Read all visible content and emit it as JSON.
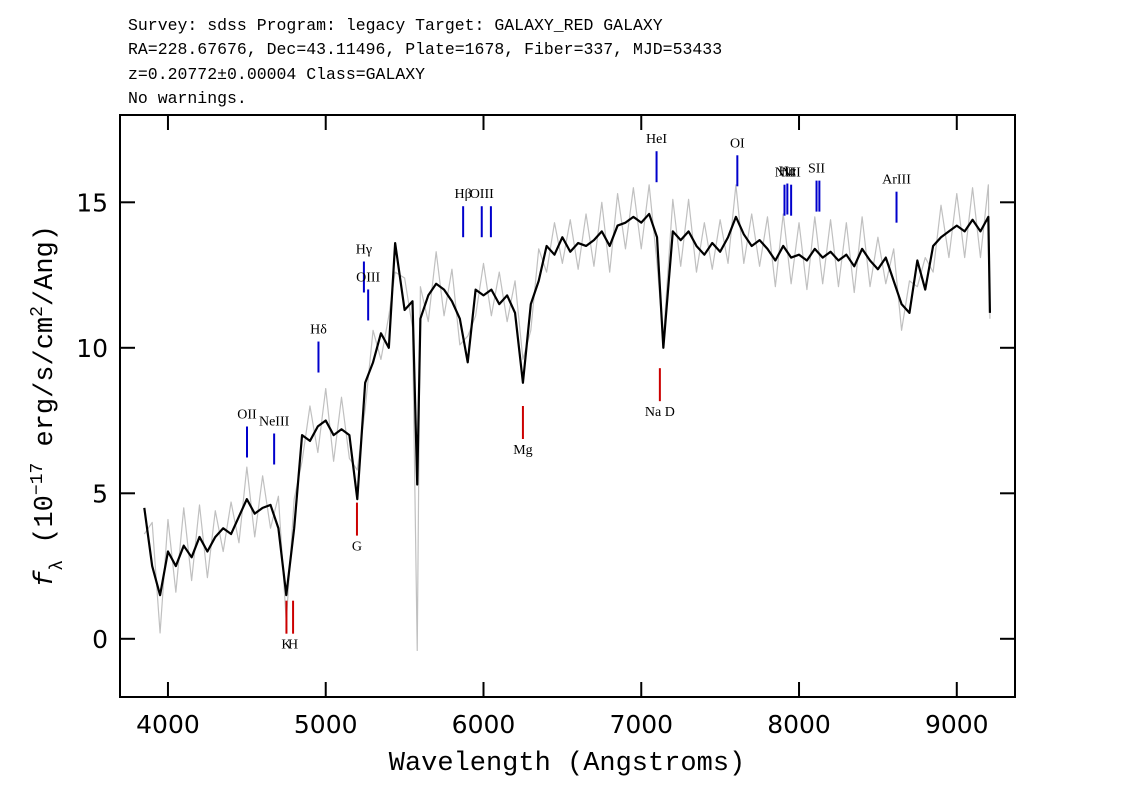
{
  "header": {
    "lines": [
      "Survey: sdss Program: legacy Target: GALAXY_RED GALAXY",
      "RA=228.67676, Dec=43.11496, Plate=1678, Fiber=337, MJD=53433",
      "z=0.20772±0.00004 Class=GALAXY",
      "No warnings."
    ]
  },
  "chart_data": {
    "type": "line",
    "xlabel": "Wavelength (Angstroms)",
    "ylabel": [
      "f",
      "λ",
      " (10",
      "−17",
      " erg/s/cm",
      "2",
      "/Ang)"
    ],
    "xlim": [
      3696,
      9369
    ],
    "ylim": [
      -2,
      18
    ],
    "xticks": [
      4000,
      5000,
      6000,
      7000,
      8000,
      9000
    ],
    "yticks": [
      0,
      5,
      10,
      15
    ],
    "x": [
      3850,
      3900,
      3950,
      4000,
      4050,
      4100,
      4150,
      4200,
      4250,
      4300,
      4350,
      4400,
      4450,
      4500,
      4550,
      4600,
      4650,
      4700,
      4750,
      4800,
      4850,
      4900,
      4950,
      5000,
      5050,
      5100,
      5150,
      5200,
      5250,
      5300,
      5350,
      5400,
      5440,
      5500,
      5550,
      5580,
      5600,
      5650,
      5700,
      5750,
      5800,
      5850,
      5900,
      5950,
      6000,
      6050,
      6100,
      6150,
      6200,
      6250,
      6300,
      6350,
      6400,
      6450,
      6500,
      6550,
      6600,
      6650,
      6700,
      6750,
      6800,
      6850,
      6900,
      6950,
      7000,
      7050,
      7100,
      7140,
      7200,
      7250,
      7300,
      7350,
      7400,
      7450,
      7500,
      7550,
      7600,
      7650,
      7700,
      7750,
      7800,
      7850,
      7900,
      7950,
      8000,
      8050,
      8100,
      8150,
      8200,
      8250,
      8300,
      8350,
      8400,
      8450,
      8500,
      8550,
      8600,
      8650,
      8700,
      8750,
      8800,
      8850,
      8900,
      8950,
      9000,
      9050,
      9100,
      9150,
      9200,
      9210
    ],
    "series": [
      {
        "color": "#c0c0c0",
        "width": 1.2,
        "values": [
          3.6,
          4.0,
          0.2,
          4.1,
          1.6,
          4.5,
          2.0,
          4.6,
          2.1,
          4.4,
          3.0,
          4.7,
          3.3,
          5.9,
          3.5,
          5.6,
          3.8,
          4.9,
          0.6,
          4.8,
          6.1,
          8.0,
          6.4,
          8.6,
          6.1,
          8.3,
          6.2,
          5.8,
          7.9,
          10.6,
          9.6,
          11.1,
          12.6,
          12.4,
          10.7,
          -0.4,
          12.1,
          10.9,
          13.3,
          11.1,
          12.7,
          10.1,
          10.4,
          11.1,
          12.9,
          11.1,
          12.6,
          10.9,
          12.3,
          9.6,
          10.6,
          13.4,
          12.6,
          14.3,
          12.9,
          14.4,
          12.7,
          14.6,
          12.8,
          15.0,
          12.6,
          15.3,
          13.4,
          15.5,
          13.4,
          15.6,
          12.9,
          10.3,
          15.1,
          12.8,
          15.1,
          12.6,
          14.3,
          12.7,
          14.4,
          12.9,
          15.6,
          12.9,
          14.6,
          12.8,
          14.5,
          12.1,
          14.6,
          12.2,
          14.3,
          12.0,
          14.5,
          12.2,
          14.4,
          12.1,
          14.3,
          11.9,
          14.5,
          12.1,
          13.8,
          12.2,
          13.4,
          10.6,
          12.3,
          12.1,
          13.1,
          12.6,
          14.9,
          13.1,
          15.3,
          13.1,
          15.5,
          13.1,
          15.6,
          11.0
        ]
      },
      {
        "color": "#000000",
        "width": 2.2,
        "values": [
          4.5,
          2.5,
          1.5,
          3.0,
          2.5,
          3.2,
          2.8,
          3.5,
          3.0,
          3.5,
          3.8,
          3.6,
          4.2,
          4.8,
          4.3,
          4.5,
          4.6,
          3.8,
          1.5,
          3.8,
          7.0,
          6.8,
          7.3,
          7.5,
          7.0,
          7.2,
          7.0,
          4.8,
          8.8,
          9.5,
          10.5,
          10.0,
          13.6,
          11.3,
          11.6,
          5.3,
          11.0,
          11.8,
          12.2,
          12.0,
          11.6,
          11.0,
          9.5,
          12.0,
          11.8,
          12.0,
          11.5,
          11.8,
          11.2,
          8.8,
          11.5,
          12.3,
          13.5,
          13.2,
          13.8,
          13.3,
          13.6,
          13.5,
          13.7,
          14.0,
          13.5,
          14.2,
          14.3,
          14.5,
          14.3,
          14.6,
          13.8,
          10.0,
          14.0,
          13.7,
          14.0,
          13.5,
          13.2,
          13.6,
          13.3,
          13.8,
          14.5,
          13.9,
          13.5,
          13.7,
          13.4,
          13.0,
          13.5,
          13.1,
          13.2,
          13.0,
          13.4,
          13.1,
          13.3,
          13.0,
          13.2,
          12.8,
          13.4,
          13.0,
          12.7,
          13.1,
          12.3,
          11.5,
          11.2,
          13.0,
          12.0,
          13.5,
          13.8,
          14.0,
          14.2,
          14.0,
          14.4,
          14.0,
          14.5,
          11.2
        ]
      }
    ],
    "emission_lines": {
      "color": "#0000cc",
      "labels": [
        "OII",
        "NeIII",
        "Hδ",
        "Hγ",
        "OIII",
        "Hβ",
        "OIII",
        null,
        "HeI",
        "OI",
        "NII",
        "Hα",
        "NII",
        "SII",
        null,
        "ArIII"
      ],
      "x": [
        4501,
        4673,
        4954,
        5242,
        5269,
        5871,
        5989,
        6047,
        7097,
        7609,
        7908,
        7926,
        7950,
        8111,
        8129,
        8618
      ],
      "y": [
        6.23,
        5.99,
        9.15,
        11.9,
        10.94,
        13.8,
        13.8,
        13.8,
        15.69,
        15.55,
        14.54,
        14.58,
        14.54,
        14.68,
        14.68,
        14.3
      ]
    },
    "absorption_lines": {
      "color": "#cc0000",
      "labels": [
        "K",
        "H",
        "G",
        "Mg",
        "Na D"
      ],
      "x": [
        4751,
        4793,
        5198,
        6250,
        7118
      ],
      "y": [
        1.31,
        1.31,
        4.68,
        8.0,
        9.3
      ]
    }
  }
}
